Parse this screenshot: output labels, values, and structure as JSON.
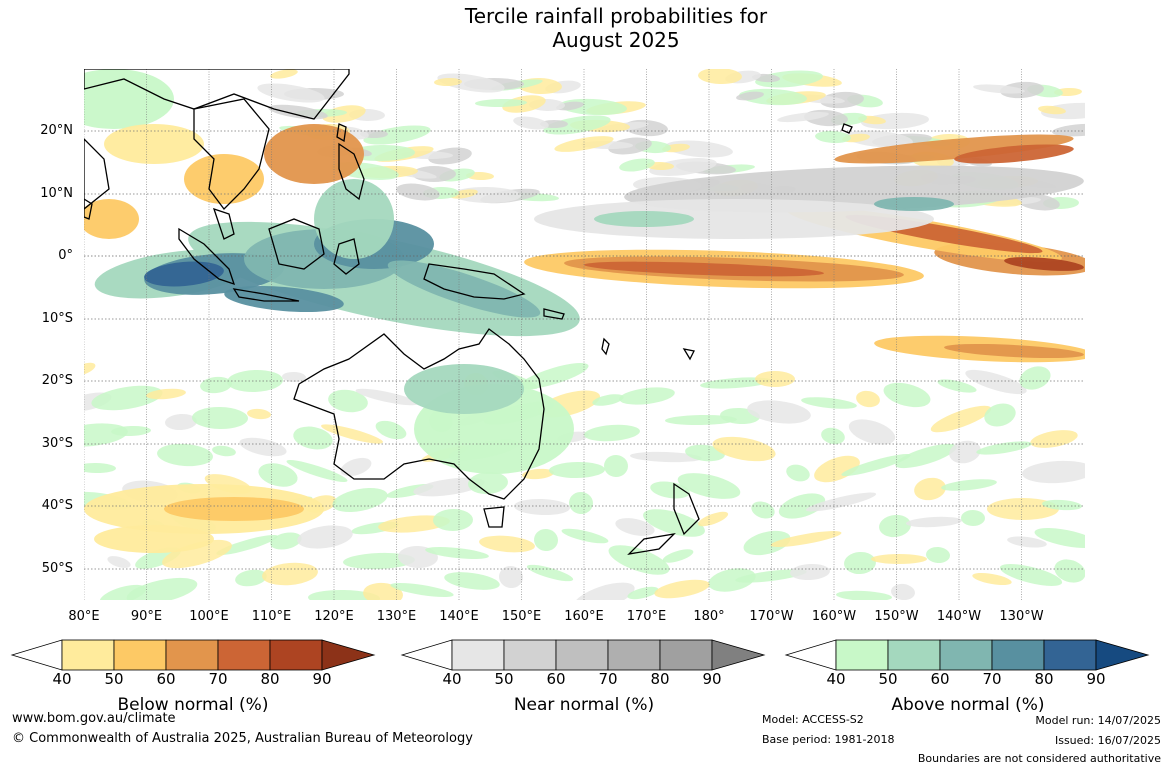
{
  "title_line1": "Tercile rainfall probabilities for",
  "title_line2": "August 2025",
  "lat_labels": [
    "20°N",
    "10°N",
    "0°",
    "10°S",
    "20°S",
    "30°S",
    "40°S",
    "50°S"
  ],
  "lon_labels": [
    "80°E",
    "90°E",
    "100°E",
    "110°E",
    "120°E",
    "130°E",
    "140°E",
    "150°E",
    "160°E",
    "170°E",
    "180°",
    "170°W",
    "160°W",
    "150°W",
    "140°W",
    "130°W"
  ],
  "legend": {
    "below": {
      "title": "Below normal (%)",
      "ticks": [
        "40",
        "50",
        "60",
        "70",
        "80",
        "90"
      ],
      "colors": [
        "#ffffff",
        "#ffeb9c",
        "#fdc965",
        "#e2954c",
        "#cc6535",
        "#ad4422",
        "#8c3218"
      ]
    },
    "near": {
      "title": "Near normal (%)",
      "ticks": [
        "40",
        "50",
        "60",
        "70",
        "80",
        "90"
      ],
      "colors": [
        "#ffffff",
        "#e6e6e6",
        "#d2d2d2",
        "#bfbfbf",
        "#afafaf",
        "#a0a0a0",
        "#808080"
      ]
    },
    "above": {
      "title": "Above normal (%)",
      "ticks": [
        "40",
        "50",
        "60",
        "70",
        "80",
        "90"
      ],
      "colors": [
        "#ffffff",
        "#c8f8c8",
        "#a4d8be",
        "#80b6b0",
        "#5890a0",
        "#336494",
        "#164a80"
      ]
    }
  },
  "footer": {
    "url": "www.bom.gov.au/climate",
    "copyright": "© Commonwealth of Australia 2025, Australian Bureau of Meteorology",
    "model": "Model: ACCESS-S2",
    "base_period": "Base period: 1981-2018",
    "model_run": "Model run: 14/07/2025",
    "issued": "Issued: 16/07/2025",
    "disclaimer": "Boundaries are not considered authoritative"
  }
}
